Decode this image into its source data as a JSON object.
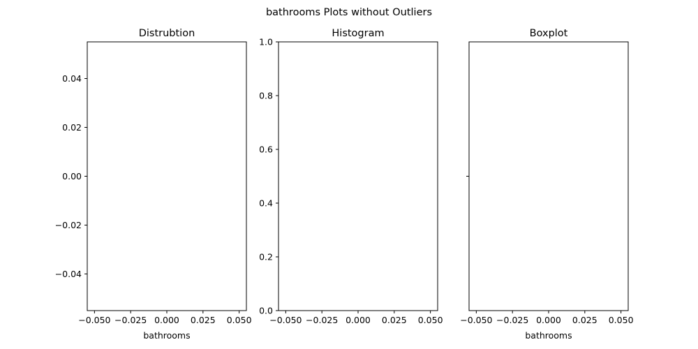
{
  "figure": {
    "suptitle": "bathrooms Plots without Outliers"
  },
  "chart_data": [
    {
      "type": "line",
      "title": "Distrubtion",
      "xlabel": "bathrooms",
      "ylabel": "",
      "xlim": [
        -0.055,
        0.055
      ],
      "ylim": [
        -0.055,
        0.055
      ],
      "xticks": [
        -0.05,
        -0.025,
        0.0,
        0.025,
        0.05
      ],
      "xtick_labels": [
        "−0.050",
        "−0.025",
        "0.000",
        "0.025",
        "0.050"
      ],
      "yticks": [
        0.04,
        0.02,
        0.0,
        -0.02,
        -0.04
      ],
      "ytick_labels": [
        "0.04",
        "0.02",
        "0.00",
        "−0.02",
        "−0.04"
      ],
      "series": [],
      "grid": false
    },
    {
      "type": "bar",
      "title": "Histogram",
      "xlabel": "",
      "ylabel": "",
      "xlim": [
        -0.055,
        0.055
      ],
      "ylim": [
        0.0,
        1.0
      ],
      "xticks": [
        -0.05,
        -0.025,
        0.0,
        0.025,
        0.05
      ],
      "xtick_labels": [
        "−0.050",
        "−0.025",
        "0.000",
        "0.025",
        "0.050"
      ],
      "yticks": [
        1.0,
        0.8,
        0.6,
        0.4,
        0.2,
        0.0
      ],
      "ytick_labels": [
        "1.0",
        "0.8",
        "0.6",
        "0.4",
        "0.2",
        "0.0"
      ],
      "values": [],
      "grid": false
    },
    {
      "type": "box",
      "title": "Boxplot",
      "xlabel": "bathrooms",
      "ylabel": "",
      "xlim": [
        -0.055,
        0.055
      ],
      "ylim": [
        -0.5,
        0.5
      ],
      "xticks": [
        -0.05,
        -0.025,
        0.0,
        0.025,
        0.05
      ],
      "xtick_labels": [
        "−0.050",
        "−0.025",
        "0.000",
        "0.025",
        "0.050"
      ],
      "yticks": [
        0.0
      ],
      "ytick_labels": [
        ""
      ],
      "values": [],
      "grid": false
    }
  ]
}
